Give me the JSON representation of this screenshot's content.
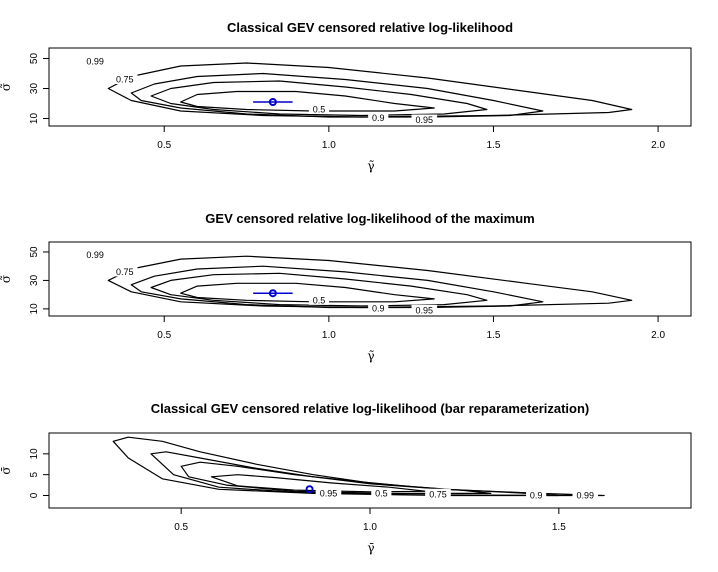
{
  "chart_data": [
    {
      "type": "contour",
      "title": "Classical GEV censored relative log-likelihood",
      "xlabel": "γ̃",
      "ylabel": "σ̃",
      "xlim": [
        0.15,
        2.1
      ],
      "ylim": [
        5,
        57
      ],
      "xticks": [
        "0.5",
        "1.0",
        "1.5",
        "2.0"
      ],
      "xtick_values": [
        0.5,
        1.0,
        1.5,
        2.0
      ],
      "yticks": [
        "10",
        "30",
        "50"
      ],
      "ytick_values": [
        10,
        30,
        50
      ],
      "levels": [
        {
          "label": "0.99",
          "label_at": [
            0.29,
            48
          ]
        },
        {
          "label": "0.95",
          "label_at": [
            1.29,
            9
          ]
        },
        {
          "label": "0.9",
          "label_at": [
            1.15,
            10.5
          ]
        },
        {
          "label": "0.75",
          "label_at": [
            0.38,
            36
          ]
        },
        {
          "label": "0.5",
          "label_at": [
            0.97,
            16
          ]
        }
      ],
      "contours": [
        [
          [
            0.33,
            30
          ],
          [
            0.4,
            38
          ],
          [
            0.55,
            45
          ],
          [
            0.75,
            47
          ],
          [
            1.0,
            44
          ],
          [
            1.3,
            37
          ],
          [
            1.6,
            28
          ],
          [
            1.8,
            22
          ],
          [
            1.92,
            16
          ],
          [
            1.85,
            14
          ],
          [
            1.5,
            12
          ],
          [
            1.1,
            11
          ],
          [
            0.8,
            12
          ],
          [
            0.55,
            15
          ],
          [
            0.4,
            22
          ],
          [
            0.33,
            30
          ]
        ],
        [
          [
            0.4,
            27
          ],
          [
            0.47,
            33
          ],
          [
            0.6,
            38
          ],
          [
            0.8,
            40
          ],
          [
            1.05,
            36
          ],
          [
            1.3,
            30
          ],
          [
            1.5,
            22
          ],
          [
            1.65,
            15
          ],
          [
            1.55,
            12
          ],
          [
            1.3,
            11
          ],
          [
            1.0,
            11
          ],
          [
            0.75,
            13
          ],
          [
            0.55,
            17
          ],
          [
            0.43,
            22
          ],
          [
            0.4,
            27
          ]
        ],
        [
          [
            0.46,
            25
          ],
          [
            0.52,
            30
          ],
          [
            0.65,
            34
          ],
          [
            0.85,
            35
          ],
          [
            1.05,
            31
          ],
          [
            1.25,
            26
          ],
          [
            1.42,
            20
          ],
          [
            1.48,
            16
          ],
          [
            1.35,
            13
          ],
          [
            1.1,
            12
          ],
          [
            0.85,
            13
          ],
          [
            0.65,
            16
          ],
          [
            0.52,
            20
          ],
          [
            0.46,
            25
          ]
        ],
        [
          [
            0.55,
            21
          ],
          [
            0.6,
            26
          ],
          [
            0.72,
            28
          ],
          [
            0.9,
            28
          ],
          [
            1.05,
            25
          ],
          [
            1.2,
            20
          ],
          [
            1.32,
            17
          ],
          [
            1.2,
            15
          ],
          [
            0.95,
            15
          ],
          [
            0.75,
            16
          ],
          [
            0.6,
            18
          ],
          [
            0.55,
            21
          ]
        ]
      ],
      "mle": {
        "gamma": 0.83,
        "sigma": 21,
        "se_gamma": 0.03
      },
      "mle_color": "#0000cc"
    },
    {
      "type": "contour",
      "title": "GEV censored relative log-likelihood of the maximum",
      "xlabel": "γ̃",
      "ylabel": "σ̃",
      "xlim": [
        0.15,
        2.1
      ],
      "ylim": [
        5,
        57
      ],
      "xticks": [
        "0.5",
        "1.0",
        "1.5",
        "2.0"
      ],
      "xtick_values": [
        0.5,
        1.0,
        1.5,
        2.0
      ],
      "yticks": [
        "10",
        "30",
        "50"
      ],
      "ytick_values": [
        10,
        30,
        50
      ],
      "levels": [
        {
          "label": "0.99",
          "label_at": [
            0.29,
            48
          ]
        },
        {
          "label": "0.95",
          "label_at": [
            1.29,
            9
          ]
        },
        {
          "label": "0.9",
          "label_at": [
            1.15,
            10.5
          ]
        },
        {
          "label": "0.75",
          "label_at": [
            0.38,
            36
          ]
        },
        {
          "label": "0.5",
          "label_at": [
            0.97,
            16
          ]
        }
      ],
      "contours": [
        [
          [
            0.33,
            30
          ],
          [
            0.4,
            38
          ],
          [
            0.55,
            45
          ],
          [
            0.75,
            47
          ],
          [
            1.0,
            44
          ],
          [
            1.3,
            37
          ],
          [
            1.6,
            28
          ],
          [
            1.8,
            22
          ],
          [
            1.92,
            16
          ],
          [
            1.85,
            14
          ],
          [
            1.5,
            12
          ],
          [
            1.1,
            11
          ],
          [
            0.8,
            12
          ],
          [
            0.55,
            15
          ],
          [
            0.4,
            22
          ],
          [
            0.33,
            30
          ]
        ],
        [
          [
            0.4,
            27
          ],
          [
            0.47,
            33
          ],
          [
            0.6,
            38
          ],
          [
            0.8,
            40
          ],
          [
            1.05,
            36
          ],
          [
            1.3,
            30
          ],
          [
            1.5,
            22
          ],
          [
            1.65,
            15
          ],
          [
            1.55,
            12
          ],
          [
            1.3,
            11
          ],
          [
            1.0,
            11
          ],
          [
            0.75,
            13
          ],
          [
            0.55,
            17
          ],
          [
            0.43,
            22
          ],
          [
            0.4,
            27
          ]
        ],
        [
          [
            0.46,
            25
          ],
          [
            0.52,
            30
          ],
          [
            0.65,
            34
          ],
          [
            0.85,
            35
          ],
          [
            1.05,
            31
          ],
          [
            1.25,
            26
          ],
          [
            1.42,
            20
          ],
          [
            1.48,
            16
          ],
          [
            1.35,
            13
          ],
          [
            1.1,
            12
          ],
          [
            0.85,
            13
          ],
          [
            0.65,
            16
          ],
          [
            0.52,
            20
          ],
          [
            0.46,
            25
          ]
        ],
        [
          [
            0.55,
            21
          ],
          [
            0.6,
            26
          ],
          [
            0.72,
            28
          ],
          [
            0.9,
            28
          ],
          [
            1.05,
            25
          ],
          [
            1.2,
            20
          ],
          [
            1.32,
            17
          ],
          [
            1.2,
            15
          ],
          [
            0.95,
            15
          ],
          [
            0.75,
            16
          ],
          [
            0.6,
            18
          ],
          [
            0.55,
            21
          ]
        ]
      ],
      "mle": {
        "gamma": 0.83,
        "sigma": 21,
        "se_gamma": 0.03
      },
      "mle_color": "#0000cc"
    },
    {
      "type": "contour",
      "title": "Classical GEV censored relative log-likelihood (bar reparameterization)",
      "xlabel": "γ̄",
      "ylabel": "σ̄",
      "xlim": [
        0.15,
        1.85
      ],
      "ylim": [
        -3,
        15
      ],
      "xticks": [
        "0.5",
        "1.0",
        "1.5"
      ],
      "xtick_values": [
        0.5,
        1.0,
        1.5
      ],
      "yticks": [
        "0",
        "5",
        "10"
      ],
      "ytick_values": [
        0,
        5,
        10
      ],
      "levels": [
        {
          "label": "0.99",
          "label_at": [
            1.57,
            0.1
          ]
        },
        {
          "label": "0.9",
          "label_at": [
            1.44,
            0.1
          ]
        },
        {
          "label": "0.75",
          "label_at": [
            1.18,
            0.3
          ]
        },
        {
          "label": "0.5",
          "label_at": [
            1.03,
            0.5
          ]
        },
        {
          "label": "0.95",
          "label_at": [
            0.89,
            0.5
          ]
        }
      ],
      "contours": [
        [
          [
            0.32,
            13
          ],
          [
            0.36,
            14
          ],
          [
            0.45,
            13
          ],
          [
            0.55,
            10.5
          ],
          [
            0.7,
            7.5
          ],
          [
            0.85,
            5
          ],
          [
            1.0,
            3
          ],
          [
            1.2,
            1.5
          ],
          [
            1.45,
            0.5
          ],
          [
            1.62,
            0
          ],
          [
            1.2,
            0
          ],
          [
            0.85,
            0.5
          ],
          [
            0.6,
            1.5
          ],
          [
            0.45,
            4
          ],
          [
            0.36,
            9
          ],
          [
            0.32,
            13
          ]
        ],
        [
          [
            0.42,
            10
          ],
          [
            0.46,
            10.5
          ],
          [
            0.55,
            9
          ],
          [
            0.7,
            6.5
          ],
          [
            0.85,
            4.5
          ],
          [
            1.0,
            2.8
          ],
          [
            1.2,
            1.5
          ],
          [
            1.4,
            0.6
          ],
          [
            1.5,
            0
          ],
          [
            1.1,
            0.2
          ],
          [
            0.8,
            0.8
          ],
          [
            0.6,
            2
          ],
          [
            0.48,
            5
          ],
          [
            0.42,
            10
          ]
        ],
        [
          [
            0.5,
            7
          ],
          [
            0.55,
            8
          ],
          [
            0.65,
            7
          ],
          [
            0.8,
            5
          ],
          [
            0.95,
            3.5
          ],
          [
            1.1,
            2.2
          ],
          [
            1.25,
            1.2
          ],
          [
            1.32,
            0.5
          ],
          [
            1.05,
            0.5
          ],
          [
            0.8,
            1
          ],
          [
            0.62,
            2.5
          ],
          [
            0.52,
            4.5
          ],
          [
            0.5,
            7
          ]
        ],
        [
          [
            0.58,
            4.5
          ],
          [
            0.65,
            5
          ],
          [
            0.75,
            4.3
          ],
          [
            0.9,
            3
          ],
          [
            1.05,
            2
          ],
          [
            1.15,
            1
          ],
          [
            1.0,
            0.9
          ],
          [
            0.8,
            1.3
          ],
          [
            0.65,
            2.3
          ],
          [
            0.58,
            4.5
          ]
        ]
      ],
      "mle": {
        "gamma": 0.84,
        "sigma": 1.5,
        "se_gamma": 0.0
      },
      "mle_color": "#0000cc"
    }
  ]
}
